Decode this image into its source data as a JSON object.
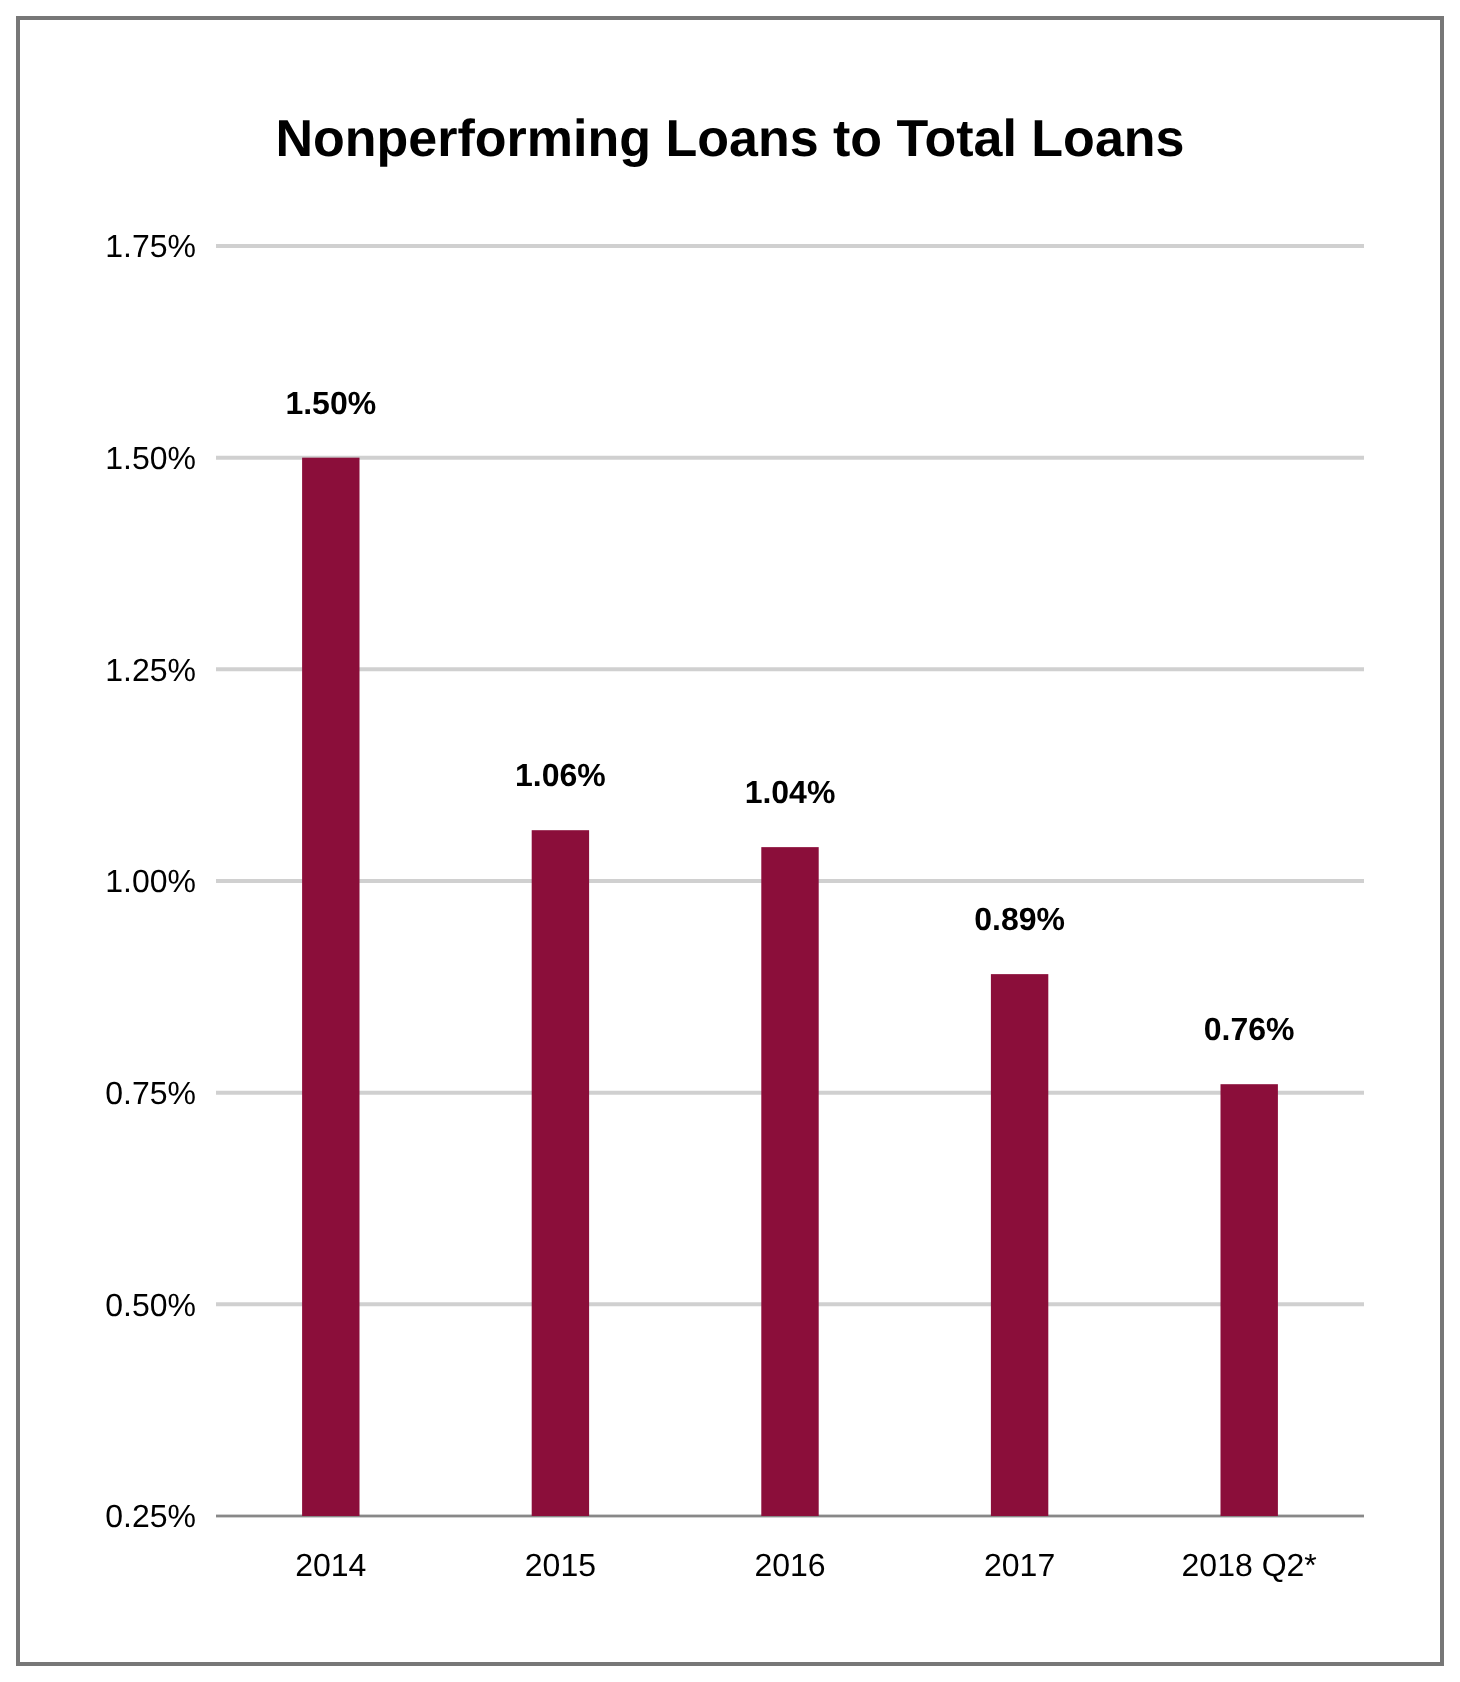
{
  "chart_data": {
    "type": "bar",
    "title": "Nonperforming Loans to Total Loans",
    "categories": [
      "2014",
      "2015",
      "2016",
      "2017",
      "2018 Q2*"
    ],
    "values": [
      1.5,
      1.06,
      1.04,
      0.89,
      0.76
    ],
    "value_labels": [
      "1.50%",
      "1.06%",
      "1.04%",
      "0.89%",
      "0.76%"
    ],
    "color": "#8b0e3a",
    "ylim": [
      0.25,
      1.75
    ],
    "yticks": [
      {
        "value": 0.25,
        "label": "0.25%"
      },
      {
        "value": 0.5,
        "label": "0.50%"
      },
      {
        "value": 0.75,
        "label": "0.75%"
      },
      {
        "value": 1,
        "label": "1.00%"
      },
      {
        "value": 1.25,
        "label": "1.25%"
      },
      {
        "value": 1.5,
        "label": "1.50%"
      },
      {
        "value": 1.75,
        "label": "1.75%"
      }
    ],
    "grid": true
  }
}
